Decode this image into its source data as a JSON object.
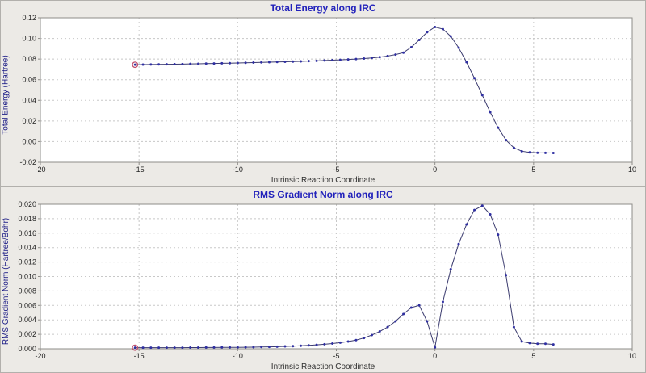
{
  "colors": {
    "panel_bg": "#eceae6",
    "plot_bg": "#ffffff",
    "grid": "#c8c8c8",
    "plot_border": "#8e8c88",
    "title": "#2222bb",
    "axis_label": "#1c1c86",
    "line": "#3a3a6e",
    "marker": "#2f2fa2",
    "highlight": "#c0506e"
  },
  "chart_data": [
    {
      "type": "line",
      "title": "Total Energy along IRC",
      "xlabel": "Intrinsic Reaction Coordinate",
      "ylabel": "Total Energy (Hartree)",
      "xlim": [
        -20,
        10
      ],
      "ylim": [
        -0.02,
        0.12
      ],
      "xticks": [
        -20,
        -15,
        -10,
        -5,
        0,
        5,
        10
      ],
      "yticks": [
        -0.02,
        0.0,
        0.02,
        0.04,
        0.06,
        0.08,
        0.1,
        0.12
      ],
      "ytick_decimals": 2,
      "grid": true,
      "legend": "none",
      "highlight_index": 0,
      "x": [
        -15.2,
        -14.8,
        -14.4,
        -14.0,
        -13.6,
        -13.2,
        -12.8,
        -12.4,
        -12.0,
        -11.6,
        -11.2,
        -10.8,
        -10.4,
        -10.0,
        -9.6,
        -9.2,
        -8.8,
        -8.4,
        -8.0,
        -7.6,
        -7.2,
        -6.8,
        -6.4,
        -6.0,
        -5.6,
        -5.2,
        -4.8,
        -4.4,
        -4.0,
        -3.6,
        -3.2,
        -2.8,
        -2.4,
        -2.0,
        -1.6,
        -1.2,
        -0.8,
        -0.4,
        0.0,
        0.4,
        0.8,
        1.2,
        1.6,
        2.0,
        2.4,
        2.8,
        3.2,
        3.6,
        4.0,
        4.4,
        4.8,
        5.2,
        5.6,
        6.0
      ],
      "y": [
        0.0745,
        0.0746,
        0.0747,
        0.0748,
        0.0749,
        0.075,
        0.0751,
        0.0753,
        0.0754,
        0.0756,
        0.0757,
        0.0759,
        0.076,
        0.0762,
        0.0764,
        0.0766,
        0.0768,
        0.077,
        0.0772,
        0.0774,
        0.0776,
        0.0778,
        0.0781,
        0.0783,
        0.0786,
        0.0789,
        0.0792,
        0.0796,
        0.08,
        0.0805,
        0.0811,
        0.0819,
        0.0829,
        0.0843,
        0.0862,
        0.0915,
        0.0985,
        0.106,
        0.111,
        0.109,
        0.102,
        0.091,
        0.077,
        0.0615,
        0.045,
        0.0285,
        0.0135,
        0.0015,
        -0.006,
        -0.0093,
        -0.0104,
        -0.0108,
        -0.0109,
        -0.011
      ]
    },
    {
      "type": "line",
      "title": "RMS Gradient Norm along IRC",
      "xlabel": "Intrinsic Reaction Coordinate",
      "ylabel": "RMS Gradient Norm (Hartree/Bohr)",
      "xlim": [
        -20,
        10
      ],
      "ylim": [
        0.0,
        0.02
      ],
      "xticks": [
        -20,
        -15,
        -10,
        -5,
        0,
        5,
        10
      ],
      "yticks": [
        0.0,
        0.002,
        0.004,
        0.006,
        0.008,
        0.01,
        0.012,
        0.014,
        0.016,
        0.018,
        0.02
      ],
      "ytick_decimals": 3,
      "grid": true,
      "legend": "none",
      "highlight_index": 0,
      "x": [
        -15.2,
        -14.8,
        -14.4,
        -14.0,
        -13.6,
        -13.2,
        -12.8,
        -12.4,
        -12.0,
        -11.6,
        -11.2,
        -10.8,
        -10.4,
        -10.0,
        -9.6,
        -9.2,
        -8.8,
        -8.4,
        -8.0,
        -7.6,
        -7.2,
        -6.8,
        -6.4,
        -6.0,
        -5.6,
        -5.2,
        -4.8,
        -4.4,
        -4.0,
        -3.6,
        -3.2,
        -2.8,
        -2.4,
        -2.0,
        -1.6,
        -1.2,
        -0.8,
        -0.4,
        0.0,
        0.4,
        0.8,
        1.2,
        1.6,
        2.0,
        2.4,
        2.8,
        3.2,
        3.6,
        4.0,
        4.4,
        4.8,
        5.2,
        5.6,
        6.0
      ],
      "y": [
        0.00015,
        0.00015,
        0.00015,
        0.00015,
        0.00015,
        0.00016,
        0.00016,
        0.00017,
        0.00017,
        0.00018,
        0.00018,
        0.00019,
        0.0002,
        0.0002,
        0.00021,
        0.00023,
        0.00025,
        0.00027,
        0.0003,
        0.00033,
        0.00037,
        0.00042,
        0.00048,
        0.00055,
        0.00063,
        0.00073,
        0.00085,
        0.001,
        0.0012,
        0.0015,
        0.0019,
        0.0024,
        0.003,
        0.0038,
        0.0048,
        0.0057,
        0.006,
        0.0038,
        0.0002,
        0.0065,
        0.011,
        0.0145,
        0.0172,
        0.0192,
        0.0198,
        0.0186,
        0.0158,
        0.0102,
        0.003,
        0.001,
        0.0008,
        0.0007,
        0.0007,
        0.0006
      ]
    }
  ]
}
